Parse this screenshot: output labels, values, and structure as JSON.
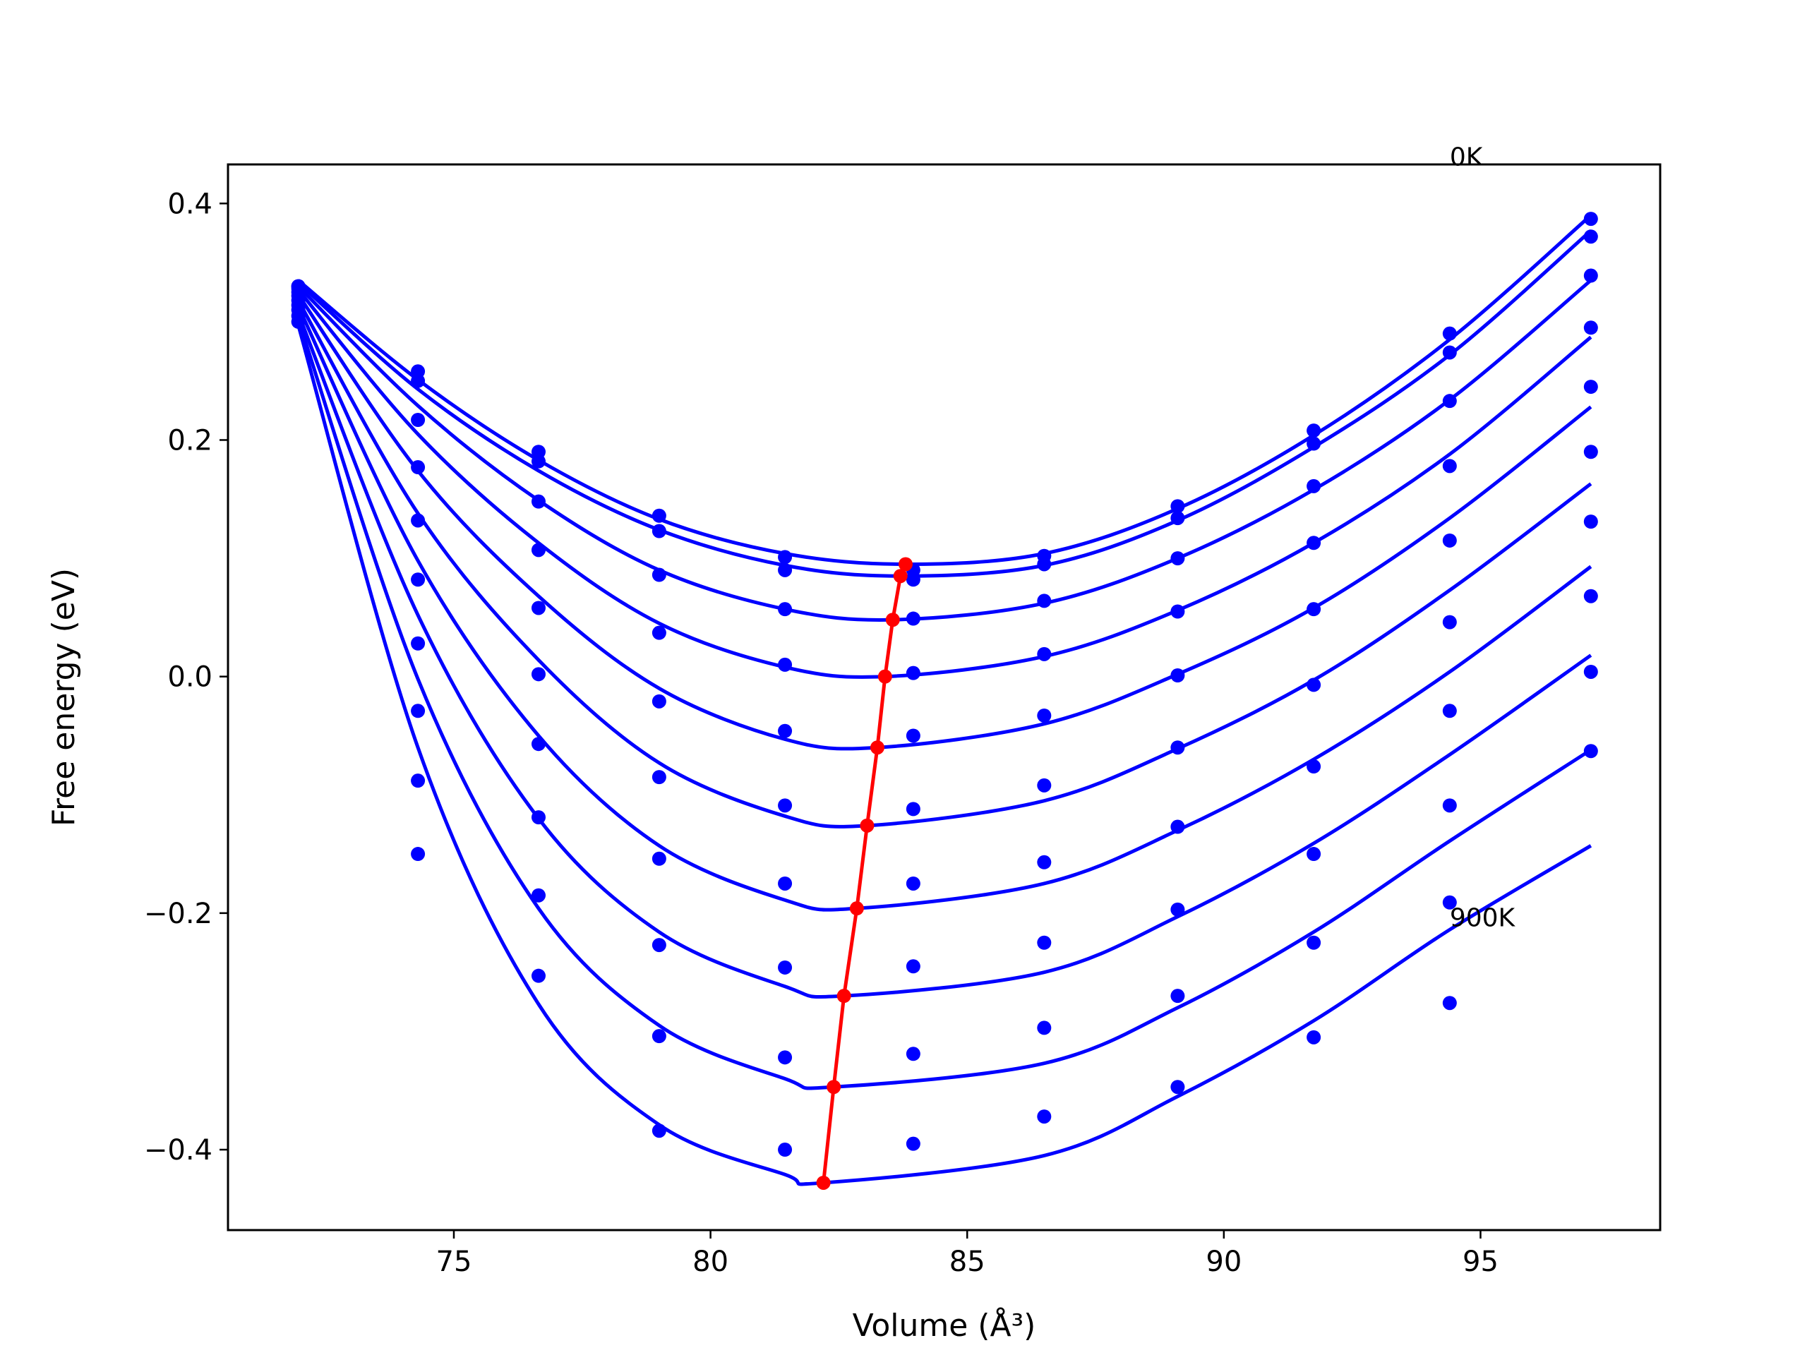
{
  "chart_data": {
    "type": "line",
    "xlabel": "Volume (Å³)",
    "ylabel": "Free energy (eV)",
    "xlim": [
      70.6,
      98.5
    ],
    "ylim": [
      -0.468,
      0.433
    ],
    "xticks": [
      75,
      80,
      85,
      90,
      95
    ],
    "yticks": [
      -0.4,
      -0.2,
      0.0,
      0.2,
      0.4
    ],
    "xtick_labels": [
      "75",
      "80",
      "85",
      "90",
      "95"
    ],
    "ytick_labels": [
      "−0.4",
      "−0.2",
      "0.0",
      "0.2",
      "0.4"
    ],
    "line_color": "#0000ff",
    "point_color": "#0000ff",
    "min_color": "#ff0000",
    "x_points": [
      71.97,
      74.3,
      76.65,
      79.0,
      81.45,
      83.95,
      86.5,
      89.1,
      91.75,
      94.4,
      97.15
    ],
    "annotations": [
      {
        "text": "0K",
        "x": 94.4,
        "y": 0.432
      },
      {
        "text": "900K",
        "x": 94.4,
        "y": -0.211
      }
    ],
    "series": [
      {
        "points": [
          0.33,
          0.258,
          0.19,
          0.136,
          0.101,
          0.09,
          0.102,
          0.144,
          0.208,
          0.29,
          0.387
        ],
        "curve": [
          [
            71.97,
            0.335
          ],
          [
            74.3,
            0.251
          ],
          [
            76.65,
            0.183
          ],
          [
            79.0,
            0.133
          ],
          [
            81.45,
            0.104
          ],
          [
            83.8,
            0.095
          ],
          [
            86.5,
            0.104
          ],
          [
            89.1,
            0.142
          ],
          [
            91.75,
            0.204
          ],
          [
            94.4,
            0.285
          ],
          [
            97.15,
            0.39
          ]
        ]
      },
      {
        "points": [
          0.33,
          0.25,
          0.182,
          0.123,
          0.09,
          0.082,
          0.095,
          0.134,
          0.197,
          0.274,
          0.372
        ],
        "curve": [
          [
            71.97,
            0.333
          ],
          [
            74.3,
            0.243
          ],
          [
            76.65,
            0.174
          ],
          [
            79.0,
            0.124
          ],
          [
            81.45,
            0.094
          ],
          [
            83.7,
            0.085
          ],
          [
            86.5,
            0.094
          ],
          [
            89.1,
            0.132
          ],
          [
            91.75,
            0.194
          ],
          [
            94.4,
            0.272
          ],
          [
            97.15,
            0.377
          ]
        ]
      },
      {
        "points": [
          0.328,
          0.217,
          0.148,
          0.086,
          0.057,
          0.049,
          0.064,
          0.1,
          0.161,
          0.233,
          0.339
        ],
        "curve": [
          [
            71.97,
            0.33
          ],
          [
            74.3,
            0.229
          ],
          [
            76.65,
            0.149
          ],
          [
            79.0,
            0.09
          ],
          [
            81.45,
            0.057
          ],
          [
            83.55,
            0.048
          ],
          [
            86.5,
            0.062
          ],
          [
            89.1,
            0.1
          ],
          [
            91.75,
            0.158
          ],
          [
            94.4,
            0.234
          ],
          [
            97.15,
            0.335
          ]
        ]
      },
      {
        "points": [
          0.325,
          0.177,
          0.107,
          0.037,
          0.01,
          0.003,
          0.019,
          0.055,
          0.113,
          0.178,
          0.295
        ],
        "curve": [
          [
            71.97,
            0.327
          ],
          [
            74.3,
            0.205
          ],
          [
            76.65,
            0.113
          ],
          [
            79.0,
            0.045
          ],
          [
            81.45,
            0.008
          ],
          [
            83.4,
            0.0
          ],
          [
            86.5,
            0.017
          ],
          [
            89.1,
            0.056
          ],
          [
            91.75,
            0.113
          ],
          [
            94.4,
            0.188
          ],
          [
            97.15,
            0.287
          ]
        ]
      },
      {
        "points": [
          0.322,
          0.132,
          0.058,
          -0.021,
          -0.046,
          -0.05,
          -0.033,
          0.001,
          0.057,
          0.115,
          0.245
        ],
        "curve": [
          [
            71.97,
            0.323
          ],
          [
            74.3,
            0.174
          ],
          [
            76.65,
            0.068
          ],
          [
            79.0,
            -0.01
          ],
          [
            81.45,
            -0.053
          ],
          [
            83.25,
            -0.06
          ],
          [
            86.5,
            -0.04
          ],
          [
            89.1,
            0.002
          ],
          [
            91.75,
            0.058
          ],
          [
            94.4,
            0.134
          ],
          [
            97.15,
            0.228
          ]
        ]
      },
      {
        "points": [
          0.318,
          0.082,
          0.002,
          -0.085,
          -0.109,
          -0.112,
          -0.092,
          -0.06,
          -0.007,
          0.046,
          0.19
        ],
        "curve": [
          [
            71.97,
            0.318
          ],
          [
            74.3,
            0.138
          ],
          [
            76.65,
            0.014
          ],
          [
            79.0,
            -0.073
          ],
          [
            81.45,
            -0.118
          ],
          [
            83.05,
            -0.126
          ],
          [
            86.5,
            -0.105
          ],
          [
            89.1,
            -0.061
          ],
          [
            91.75,
            -0.003
          ],
          [
            94.4,
            0.073
          ],
          [
            97.15,
            0.163
          ]
        ]
      },
      {
        "points": [
          0.314,
          0.028,
          -0.057,
          -0.154,
          -0.175,
          -0.175,
          -0.157,
          -0.127,
          -0.076,
          -0.029,
          0.131
        ],
        "curve": [
          [
            71.97,
            0.313
          ],
          [
            74.3,
            0.098
          ],
          [
            76.65,
            -0.05
          ],
          [
            79.0,
            -0.143
          ],
          [
            81.45,
            -0.189
          ],
          [
            82.85,
            -0.196
          ],
          [
            86.5,
            -0.175
          ],
          [
            89.1,
            -0.13
          ],
          [
            91.75,
            -0.07
          ],
          [
            94.4,
            0.004
          ],
          [
            97.15,
            0.093
          ]
        ]
      },
      {
        "points": [
          0.31,
          -0.029,
          -0.119,
          -0.227,
          -0.246,
          -0.245,
          -0.225,
          -0.197,
          -0.15,
          -0.109,
          0.068
        ],
        "curve": [
          [
            71.97,
            0.307
          ],
          [
            74.3,
            0.052
          ],
          [
            76.65,
            -0.12
          ],
          [
            79.0,
            -0.216
          ],
          [
            81.45,
            -0.262
          ],
          [
            82.6,
            -0.27
          ],
          [
            86.5,
            -0.25
          ],
          [
            89.1,
            -0.203
          ],
          [
            91.75,
            -0.141
          ],
          [
            94.4,
            -0.066
          ],
          [
            97.15,
            0.018
          ]
        ]
      },
      {
        "points": [
          0.305,
          -0.088,
          -0.185,
          -0.304,
          -0.322,
          -0.319,
          -0.297,
          -0.27,
          -0.225,
          -0.191,
          0.004
        ],
        "curve": [
          [
            71.97,
            0.302
          ],
          [
            74.3,
            -0.002
          ],
          [
            76.65,
            -0.196
          ],
          [
            79.0,
            -0.295
          ],
          [
            81.45,
            -0.34
          ],
          [
            82.4,
            -0.347
          ],
          [
            86.5,
            -0.327
          ],
          [
            89.1,
            -0.28
          ],
          [
            91.75,
            -0.216
          ],
          [
            94.4,
            -0.139
          ],
          [
            97.15,
            -0.062
          ]
        ]
      },
      {
        "points": [
          0.3,
          -0.15,
          -0.253,
          -0.384,
          -0.4,
          -0.395,
          -0.372,
          -0.347,
          -0.305,
          -0.276,
          -0.063
        ],
        "curve": [
          [
            71.97,
            0.297
          ],
          [
            74.3,
            -0.06
          ],
          [
            76.65,
            -0.277
          ],
          [
            79.0,
            -0.379
          ],
          [
            81.45,
            -0.421
          ],
          [
            82.2,
            -0.428
          ],
          [
            86.5,
            -0.405
          ],
          [
            89.1,
            -0.355
          ],
          [
            91.75,
            -0.291
          ],
          [
            94.4,
            -0.214
          ],
          [
            97.15,
            -0.143
          ]
        ]
      }
    ],
    "minima": {
      "x": [
        83.8,
        83.7,
        83.55,
        83.4,
        83.25,
        83.05,
        82.85,
        82.6,
        82.4,
        82.2
      ],
      "y": [
        0.095,
        0.085,
        0.048,
        0.0,
        -0.06,
        -0.126,
        -0.196,
        -0.27,
        -0.347,
        -0.428
      ]
    }
  }
}
